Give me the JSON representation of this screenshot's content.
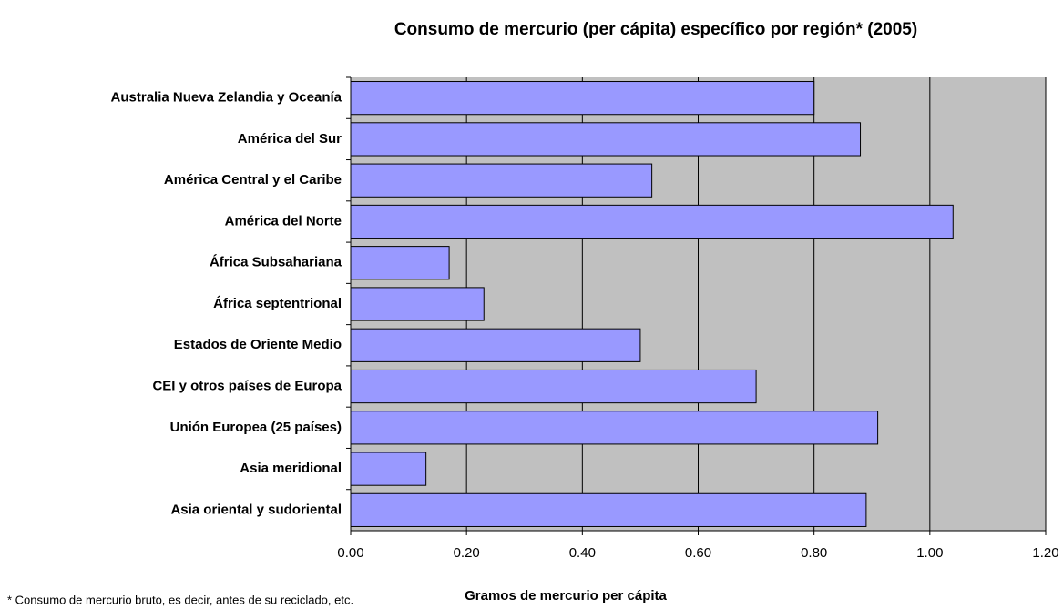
{
  "chart_data": {
    "type": "barh",
    "title": "Consumo de mercurio (per cápita) específico por región* (2005)",
    "xlabel": "Gramos de mercurio per cápita",
    "footnote": "* Consumo de mercurio bruto, es decir, antes de su reciclado, etc.",
    "categories": [
      "Australia Nueva Zelandia y Oceanía",
      "América del Sur",
      "América Central y el Caribe",
      "América del Norte",
      "África Subsahariana",
      "África septentrional",
      "Estados de Oriente Medio",
      "CEI y otros países de Europa",
      "Unión Europea (25 países)",
      "Asia meridional",
      "Asia oriental y sudoriental"
    ],
    "values": [
      0.8,
      0.88,
      0.52,
      1.04,
      0.17,
      0.23,
      0.5,
      0.7,
      0.91,
      0.13,
      0.89
    ],
    "color": "#9999ff",
    "xlim": [
      0,
      1.2
    ],
    "xticks": [
      {
        "value": 0,
        "label": "0.00"
      },
      {
        "value": 0.2,
        "label": "0.20"
      },
      {
        "value": 0.4,
        "label": "0.40"
      },
      {
        "value": 0.6,
        "label": "0.60"
      },
      {
        "value": 0.8,
        "label": "0.80"
      },
      {
        "value": 1.0,
        "label": "1.00"
      },
      {
        "value": 1.2,
        "label": "1.20"
      }
    ],
    "grid": true
  }
}
